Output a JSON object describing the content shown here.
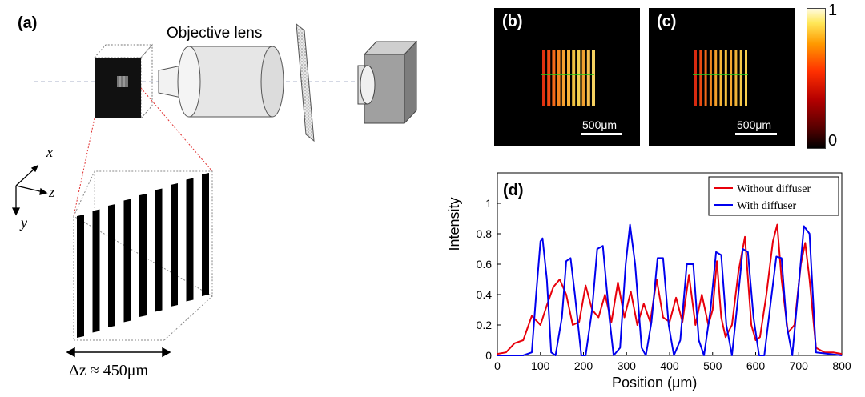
{
  "figure": {
    "panel_a": {
      "label": "(a)",
      "lens_label": "Objective lens",
      "axes": {
        "x": "x",
        "y": "y",
        "z": "z"
      },
      "depth_label": "Δz ≈ 450μm",
      "stripe_count": 9
    },
    "panel_b": {
      "label": "(b)",
      "scale_bar": "500μm"
    },
    "panel_c": {
      "label": "(c)",
      "scale_bar": "500μm"
    },
    "colorbar": {
      "max": "1",
      "min": "0"
    }
  },
  "chart_data": {
    "type": "line",
    "label": "(d)",
    "xlabel": "Position (μm)",
    "ylabel": "Intensity",
    "xlim": [
      0,
      800
    ],
    "ylim": [
      0,
      1.2
    ],
    "xticks": [
      0,
      100,
      200,
      300,
      400,
      500,
      600,
      700,
      800
    ],
    "yticks": [
      0,
      0.2,
      0.4,
      0.6,
      0.8,
      1
    ],
    "grid": false,
    "legend_position": "top-right",
    "series": [
      {
        "name": "Without diffuser",
        "color": "#e8000b",
        "x": [
          0,
          20,
          40,
          60,
          80,
          100,
          115,
          130,
          145,
          160,
          175,
          190,
          205,
          220,
          235,
          250,
          265,
          280,
          295,
          310,
          325,
          340,
          355,
          370,
          385,
          400,
          415,
          430,
          445,
          460,
          475,
          490,
          500,
          510,
          520,
          530,
          545,
          560,
          575,
          590,
          600,
          610,
          625,
          640,
          650,
          660,
          675,
          690,
          705,
          715,
          725,
          740,
          760,
          780,
          800
        ],
        "y": [
          0.01,
          0.02,
          0.08,
          0.1,
          0.26,
          0.2,
          0.33,
          0.45,
          0.5,
          0.4,
          0.2,
          0.22,
          0.46,
          0.3,
          0.25,
          0.4,
          0.22,
          0.48,
          0.25,
          0.42,
          0.2,
          0.34,
          0.22,
          0.5,
          0.25,
          0.22,
          0.38,
          0.22,
          0.53,
          0.2,
          0.4,
          0.2,
          0.3,
          0.62,
          0.25,
          0.12,
          0.2,
          0.55,
          0.78,
          0.2,
          0.1,
          0.12,
          0.4,
          0.75,
          0.86,
          0.5,
          0.15,
          0.2,
          0.6,
          0.74,
          0.5,
          0.05,
          0.02,
          0.02,
          0.01
        ]
      },
      {
        "name": "With diffuser",
        "color": "#0000ee",
        "x": [
          0,
          60,
          80,
          90,
          100,
          105,
          115,
          125,
          135,
          150,
          160,
          170,
          180,
          195,
          205,
          220,
          232,
          245,
          260,
          270,
          285,
          298,
          308,
          320,
          335,
          345,
          358,
          372,
          385,
          398,
          410,
          425,
          440,
          455,
          468,
          480,
          495,
          508,
          520,
          532,
          545,
          558,
          570,
          582,
          595,
          608,
          620,
          635,
          648,
          660,
          672,
          685,
          698,
          712,
          725,
          740,
          800
        ],
        "y": [
          0,
          0,
          0.02,
          0.4,
          0.75,
          0.77,
          0.5,
          0.02,
          0.0,
          0.25,
          0.62,
          0.64,
          0.4,
          0.0,
          0.0,
          0.3,
          0.7,
          0.72,
          0.25,
          0.0,
          0.05,
          0.6,
          0.86,
          0.6,
          0.05,
          0.0,
          0.22,
          0.64,
          0.64,
          0.2,
          0.0,
          0.1,
          0.6,
          0.6,
          0.1,
          0.0,
          0.3,
          0.68,
          0.66,
          0.2,
          0.0,
          0.35,
          0.7,
          0.68,
          0.25,
          0.0,
          0.0,
          0.35,
          0.65,
          0.64,
          0.2,
          0.0,
          0.4,
          0.85,
          0.8,
          0.02,
          0
        ]
      }
    ]
  }
}
